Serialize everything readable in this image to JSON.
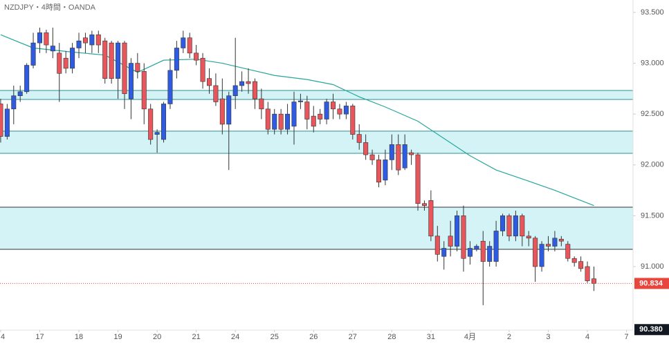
{
  "chart_data": {
    "type": "candlestick",
    "title": "NZDJPY・4時間・OANDA",
    "up_color": "#2f5be0",
    "down_color": "#e8555a",
    "xlim": [
      -0.1,
      97.0
    ],
    "xticks": [
      {
        "value": 0,
        "label": "4"
      },
      {
        "value": 6,
        "label": "17"
      },
      {
        "value": 12,
        "label": "18"
      },
      {
        "value": 18,
        "label": "19"
      },
      {
        "value": 24,
        "label": "20"
      },
      {
        "value": 30,
        "label": "21"
      },
      {
        "value": 36,
        "label": "24"
      },
      {
        "value": 42,
        "label": "25"
      },
      {
        "value": 48,
        "label": "26"
      },
      {
        "value": 54,
        "label": "27"
      },
      {
        "value": 60,
        "label": "28"
      },
      {
        "value": 66,
        "label": "31"
      },
      {
        "value": 72,
        "label": "4月"
      },
      {
        "value": 78,
        "label": "2"
      },
      {
        "value": 84,
        "label": "3"
      },
      {
        "value": 90,
        "label": "4"
      },
      {
        "value": 96,
        "label": "7"
      }
    ],
    "ylim": [
      90.375,
      93.622
    ],
    "yticks": [
      {
        "value": 91,
        "label": "91.000"
      },
      {
        "value": 91.5,
        "label": "91.500"
      },
      {
        "value": 92,
        "label": "92.000"
      },
      {
        "value": 92.5,
        "label": "92.500"
      },
      {
        "value": 93,
        "label": "93.000"
      },
      {
        "value": 93.5,
        "label": "93.500"
      }
    ],
    "open": [
      92.6,
      92.28,
      92.55,
      92.68,
      92.72,
      92.98,
      93.2,
      93.3,
      93.12,
      93.1,
      93.05,
      92.95,
      93.15,
      93.25,
      93.18,
      93.28,
      93.22,
      93.2,
      92.85,
      93.2,
      92.65,
      93.0,
      92.92,
      92.55,
      92.3,
      92.25,
      92.6,
      92.93,
      93.15,
      93.25,
      93.1,
      93.05,
      92.85,
      92.78,
      92.65,
      92.4,
      92.68,
      92.78,
      92.82,
      92.82,
      92.65,
      92.55,
      92.35,
      92.5,
      92.35,
      92.38,
      92.62,
      92.62,
      92.48,
      92.5,
      92.45,
      92.62,
      92.55,
      92.5,
      92.58,
      92.3,
      92.22,
      92.1,
      92.05,
      91.85,
      92.05,
      92.2,
      91.97,
      92.12,
      92.1,
      91.62,
      91.65,
      91.3,
      91.1,
      91.3,
      91.2,
      91.5,
      91.1,
      91.17,
      91.25,
      91.05,
      91.05,
      91.35,
      91.5,
      91.3,
      91.5,
      91.3,
      91.28,
      91.0,
      91.22,
      91.2,
      91.27,
      91.22,
      91.08,
      91.05,
      91.0,
      90.88
    ],
    "high": [
      92.65,
      92.6,
      92.78,
      92.78,
      93.0,
      93.3,
      93.35,
      93.33,
      93.35,
      93.2,
      93.12,
      93.2,
      93.3,
      93.3,
      93.32,
      93.32,
      93.25,
      93.22,
      93.22,
      93.22,
      93.05,
      93.1,
      93.0,
      92.6,
      92.35,
      92.62,
      93.05,
      93.22,
      93.32,
      93.3,
      93.18,
      93.1,
      92.95,
      92.9,
      92.85,
      92.72,
      93.25,
      92.92,
      92.95,
      92.85,
      92.75,
      92.62,
      92.55,
      92.55,
      92.6,
      92.72,
      92.7,
      92.68,
      92.58,
      92.55,
      92.65,
      92.7,
      92.6,
      92.62,
      92.6,
      92.4,
      92.3,
      92.15,
      92.1,
      92.15,
      92.3,
      92.3,
      92.3,
      92.15,
      92.12,
      91.65,
      91.75,
      91.4,
      91.25,
      91.45,
      91.55,
      91.6,
      91.25,
      91.22,
      91.35,
      91.25,
      91.45,
      91.52,
      91.52,
      91.55,
      91.52,
      91.35,
      91.3,
      91.25,
      91.3,
      91.35,
      91.3,
      91.25,
      91.1,
      91.1,
      91.05,
      91.0
    ],
    "low": [
      92.22,
      92.25,
      92.4,
      92.62,
      92.7,
      92.95,
      93.1,
      93.1,
      93.05,
      92.62,
      92.9,
      92.9,
      93.05,
      93.1,
      93.1,
      93.1,
      92.8,
      92.8,
      92.65,
      92.55,
      92.45,
      92.85,
      92.4,
      92.2,
      92.12,
      92.22,
      92.55,
      92.85,
      93.1,
      93.05,
      92.98,
      92.75,
      92.7,
      92.58,
      92.3,
      91.95,
      92.55,
      92.72,
      92.7,
      92.55,
      92.45,
      92.3,
      92.3,
      92.3,
      92.3,
      92.2,
      92.55,
      92.35,
      92.32,
      92.4,
      92.4,
      92.45,
      92.45,
      92.45,
      92.25,
      92.15,
      92.05,
      92.0,
      91.78,
      91.8,
      91.95,
      91.9,
      91.95,
      92.0,
      91.55,
      91.55,
      91.25,
      91.05,
      90.97,
      91.1,
      91.15,
      90.95,
      91.02,
      91.15,
      90.62,
      91.0,
      91.0,
      91.3,
      91.25,
      91.25,
      91.2,
      91.2,
      90.85,
      90.95,
      91.15,
      91.15,
      91.2,
      91.05,
      91.0,
      90.95,
      90.84,
      90.76
    ],
    "close": [
      92.28,
      92.55,
      92.68,
      92.72,
      92.98,
      93.2,
      93.3,
      93.18,
      93.17,
      92.9,
      92.95,
      93.15,
      93.22,
      93.2,
      93.28,
      93.18,
      92.85,
      92.85,
      93.2,
      92.7,
      93.0,
      92.92,
      92.55,
      92.25,
      92.32,
      92.6,
      92.93,
      93.15,
      93.25,
      93.1,
      93.03,
      92.82,
      92.78,
      92.62,
      92.4,
      92.68,
      92.78,
      92.82,
      92.8,
      92.65,
      92.55,
      92.35,
      92.5,
      92.35,
      92.5,
      92.62,
      92.63,
      92.45,
      92.38,
      92.45,
      92.62,
      92.55,
      92.5,
      92.58,
      92.3,
      92.22,
      92.1,
      92.05,
      91.83,
      92.05,
      92.2,
      91.95,
      92.2,
      92.1,
      91.62,
      91.6,
      91.3,
      91.12,
      91.18,
      91.2,
      91.5,
      91.08,
      91.18,
      91.2,
      91.05,
      91.2,
      91.35,
      91.5,
      91.3,
      91.5,
      91.3,
      91.28,
      91.0,
      91.22,
      91.2,
      91.28,
      91.25,
      91.08,
      91.04,
      90.98,
      90.86,
      90.834
    ],
    "ma": {
      "color": "#26a69a",
      "x": [
        0,
        5,
        11,
        16,
        21,
        25,
        30,
        34,
        38,
        42,
        47,
        51,
        55,
        59,
        64,
        68,
        72,
        76,
        81,
        85,
        91
      ],
      "values": [
        93.28,
        93.15,
        93.11,
        93.08,
        92.91,
        93.03,
        93.04,
        93.0,
        92.94,
        92.88,
        92.84,
        92.79,
        92.67,
        92.57,
        92.43,
        92.26,
        92.09,
        91.95,
        91.84,
        91.75,
        91.6
      ]
    },
    "zones": [
      {
        "low": 92.644,
        "high": 92.732,
        "fill": "#d3f3f7",
        "edge_color": "#2f8f8f"
      },
      {
        "low": 92.114,
        "high": 92.332,
        "fill": "#d3f3f7",
        "edge_color": "#2f8f8f"
      },
      {
        "low": 91.17,
        "high": 91.584,
        "fill": "#d3f3f7",
        "edge_color": "#333333"
      }
    ],
    "last_price": {
      "value": 90.834,
      "color": "#e8453c"
    },
    "axis_low": {
      "value": 90.38,
      "label": "90.380"
    }
  }
}
